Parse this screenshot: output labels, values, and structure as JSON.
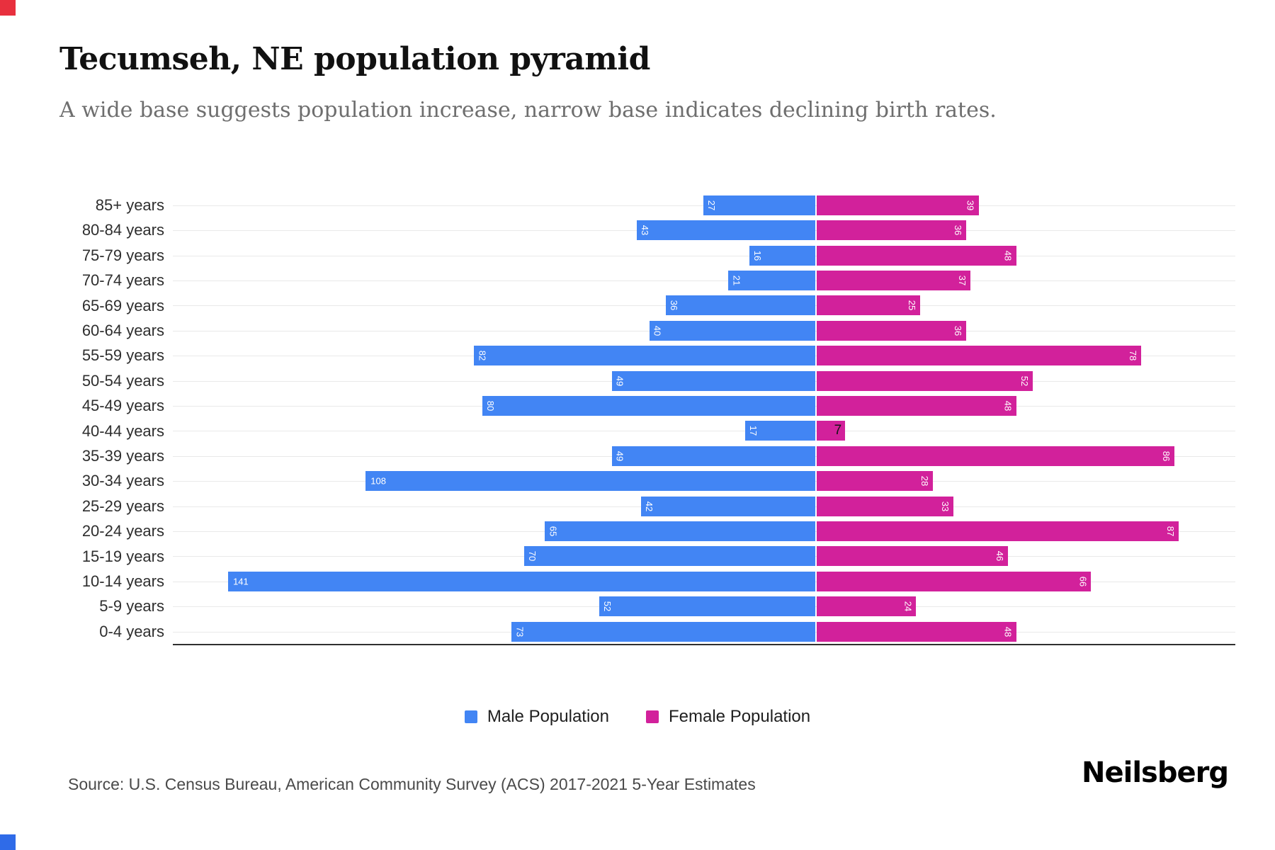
{
  "header": {
    "title": "Tecumseh, NE population pyramid",
    "subtitle": "A wide base suggests population increase, narrow base indicates declining birth rates."
  },
  "chart_data": {
    "type": "bar",
    "subtype": "population-pyramid",
    "orientation": "horizontal",
    "title": "Tecumseh, NE population pyramid",
    "categories": [
      "85+ years",
      "80-84 years",
      "75-79 years",
      "70-74 years",
      "65-69 years",
      "60-64 years",
      "55-59 years",
      "50-54 years",
      "45-49 years",
      "40-44 years",
      "35-39 years",
      "30-34 years",
      "25-29 years",
      "20-24 years",
      "15-19 years",
      "10-14 years",
      "5-9 years",
      "0-4 years"
    ],
    "series": [
      {
        "name": "Male Population",
        "side": "left",
        "color": "#4285f4",
        "values": [
          27,
          43,
          16,
          21,
          36,
          40,
          82,
          49,
          80,
          17,
          49,
          108,
          42,
          65,
          70,
          141,
          52,
          73
        ]
      },
      {
        "name": "Female Population",
        "side": "right",
        "color": "#d2219b",
        "values": [
          39,
          36,
          48,
          37,
          25,
          36,
          78,
          52,
          48,
          7,
          86,
          28,
          33,
          87,
          46,
          66,
          24,
          48
        ]
      }
    ],
    "value_labels": "inside-bar, rotated 90deg, white; horizontal when >= 100; dark when bar too short",
    "grid": true,
    "legend_position": "bottom"
  },
  "legend": {
    "items": [
      {
        "label": "Male Population",
        "color": "#4285f4"
      },
      {
        "label": "Female Population",
        "color": "#d2219b"
      }
    ]
  },
  "footer": {
    "source": "Source: U.S. Census Bureau, American Community Survey (ACS) 2017-2021 5-Year Estimates",
    "brand": "Neilsberg"
  },
  "accents": {
    "top_left_square": "#e8303e",
    "bottom_left_square": "#2f6be8"
  }
}
